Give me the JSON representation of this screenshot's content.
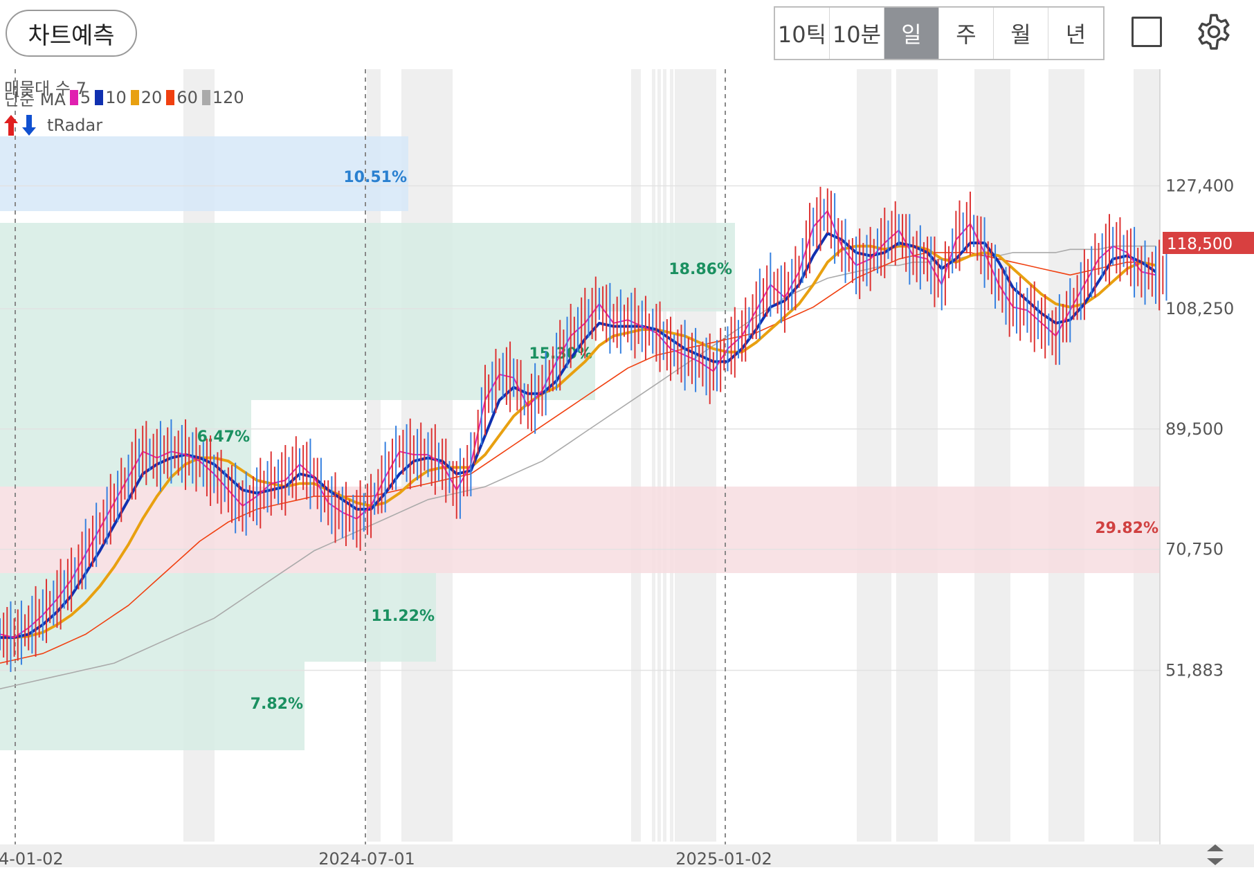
{
  "toolbar": {
    "predict_label": "차트예측",
    "periods": [
      "10틱",
      "10분",
      "일",
      "주",
      "월",
      "년"
    ],
    "active_period": "일"
  },
  "legend": {
    "volume_profile": "매물대 수 7",
    "ma_label": "단순 MA",
    "ma_periods": [
      {
        "period": "5",
        "color": "#e020b0"
      },
      {
        "period": "10",
        "color": "#1030b0"
      },
      {
        "period": "20",
        "color": "#e8a010"
      },
      {
        "period": "60",
        "color": "#f04010"
      },
      {
        "period": "120",
        "color": "#aaaaaa"
      }
    ],
    "tradar": "tRadar"
  },
  "chart_data": {
    "type": "line",
    "x_labels": [
      "4-01-02",
      "2024-07-01",
      "2025-01-02"
    ],
    "y_ticks": [
      127400,
      108250,
      89500,
      70750,
      51883
    ],
    "current_price": 118500,
    "current_price_label": "118,500",
    "volume_profile": [
      {
        "pct": "10.51%",
        "color": "blue"
      },
      {
        "pct": "18.86%",
        "color": "green"
      },
      {
        "pct": "15.30%",
        "color": "green"
      },
      {
        "pct": "6.47%",
        "color": "green"
      },
      {
        "pct": "29.82%",
        "color": "red"
      },
      {
        "pct": "11.22%",
        "color": "green"
      },
      {
        "pct": "7.82%",
        "color": "green"
      }
    ],
    "series": [
      {
        "name": "5",
        "values": [
          57500,
          57000,
          58500,
          60500,
          63000,
          66000,
          70000,
          74000,
          78000,
          82000,
          86000,
          85000,
          86000,
          85500,
          84500,
          82500,
          80000,
          77500,
          79000,
          81000,
          81500,
          84000,
          82000,
          78000,
          76500,
          75500,
          77500,
          82000,
          86000,
          85500,
          85500,
          84000,
          80000,
          84000,
          94000,
          98000,
          97500,
          93000,
          95500,
          100000,
          104000,
          106000,
          109000,
          106000,
          106500,
          105500,
          104500,
          102000,
          101000,
          100000,
          98500,
          102000,
          104000,
          108000,
          112000,
          110000,
          114000,
          121000,
          123500,
          118000,
          115000,
          116000,
          118500,
          120500,
          116500,
          116000,
          112000,
          119000,
          121500,
          117000,
          112000,
          108500,
          108000,
          106000,
          104000,
          108000,
          112000,
          116000,
          118000,
          117000,
          114000,
          113500
        ],
        "color": "#e020b0"
      },
      {
        "name": "10",
        "values": [
          57000,
          57000,
          57500,
          59000,
          61000,
          63500,
          67000,
          70500,
          74500,
          78500,
          82500,
          84000,
          85000,
          85500,
          85000,
          84000,
          82000,
          80000,
          79500,
          80000,
          80500,
          82500,
          82000,
          80000,
          78500,
          77000,
          77000,
          79500,
          82500,
          84500,
          85000,
          84500,
          82500,
          83000,
          88500,
          94000,
          96000,
          95000,
          95000,
          97000,
          100500,
          103500,
          106000,
          105500,
          105500,
          105500,
          105000,
          103500,
          102000,
          101000,
          100000,
          100000,
          102000,
          105000,
          108500,
          109500,
          112000,
          116500,
          120000,
          119000,
          117000,
          116500,
          117000,
          118500,
          118000,
          117000,
          114500,
          116000,
          118500,
          118500,
          115500,
          111500,
          109500,
          107500,
          106000,
          106500,
          109000,
          112500,
          116000,
          116500,
          115500,
          114000
        ],
        "color": "#1030b0"
      },
      {
        "name": "20",
        "values": [
          57000,
          57000,
          57200,
          57800,
          59000,
          60500,
          62500,
          65000,
          68000,
          71500,
          75500,
          79000,
          82000,
          84000,
          85000,
          85000,
          84500,
          83000,
          81500,
          81000,
          80500,
          81000,
          81000,
          80000,
          79000,
          78000,
          77500,
          78000,
          79500,
          81500,
          83000,
          83500,
          83500,
          83500,
          85500,
          88500,
          91500,
          93500,
          95000,
          96000,
          98000,
          100000,
          102500,
          104000,
          104500,
          105000,
          105000,
          104500,
          104000,
          103000,
          102000,
          101500,
          101500,
          103000,
          105000,
          107000,
          109000,
          112000,
          115500,
          117500,
          118000,
          118000,
          117500,
          118000,
          118000,
          117500,
          116000,
          115500,
          116500,
          117000,
          116500,
          114500,
          112500,
          110500,
          109000,
          108500,
          109000,
          110500,
          112500,
          114500,
          115500,
          115000
        ],
        "color": "#e8a010"
      },
      {
        "name": "60",
        "values": [
          53000,
          53500,
          54000,
          54500,
          55500,
          56500,
          57500,
          59000,
          60500,
          62000,
          64000,
          66000,
          68000,
          70000,
          72000,
          73500,
          75000,
          76000,
          77000,
          77500,
          78000,
          78500,
          79000,
          79000,
          79000,
          79000,
          79000,
          79500,
          80000,
          80500,
          81000,
          81500,
          82000,
          82500,
          84000,
          85500,
          87000,
          88500,
          90000,
          91500,
          93000,
          94500,
          96000,
          97500,
          99000,
          100000,
          101000,
          101500,
          102000,
          102500,
          103000,
          103500,
          104000,
          104500,
          105500,
          106500,
          107500,
          108500,
          110000,
          111500,
          113000,
          114000,
          115000,
          116000,
          116500,
          117000,
          117000,
          117000,
          117000,
          116500,
          116000,
          115500,
          115000,
          114500,
          114000,
          113500,
          114000,
          114500,
          115000,
          115500,
          115500,
          115000
        ],
        "color": "#f04010"
      },
      {
        "name": "120",
        "values": [
          49000,
          49500,
          50000,
          50500,
          51000,
          51500,
          52000,
          52500,
          53000,
          54000,
          55000,
          56000,
          57000,
          58000,
          59000,
          60000,
          61500,
          63000,
          64500,
          66000,
          67500,
          69000,
          70500,
          71500,
          72500,
          73500,
          74500,
          75500,
          76500,
          77500,
          78500,
          79000,
          79500,
          80000,
          80500,
          81500,
          82500,
          83500,
          84500,
          86000,
          87500,
          89000,
          90500,
          92000,
          93500,
          95000,
          96500,
          98000,
          99500,
          101000,
          102500,
          104000,
          105500,
          107000,
          108500,
          110000,
          111000,
          112000,
          113000,
          113500,
          114000,
          114500,
          115000,
          115000,
          115500,
          115500,
          116000,
          116000,
          116500,
          116500,
          116500,
          117000,
          117000,
          117000,
          117000,
          117500,
          117500,
          117500,
          118000,
          118000,
          118000,
          118000
        ],
        "color": "#aaaaaa"
      }
    ],
    "ylim": [
      47000,
      135000
    ]
  }
}
